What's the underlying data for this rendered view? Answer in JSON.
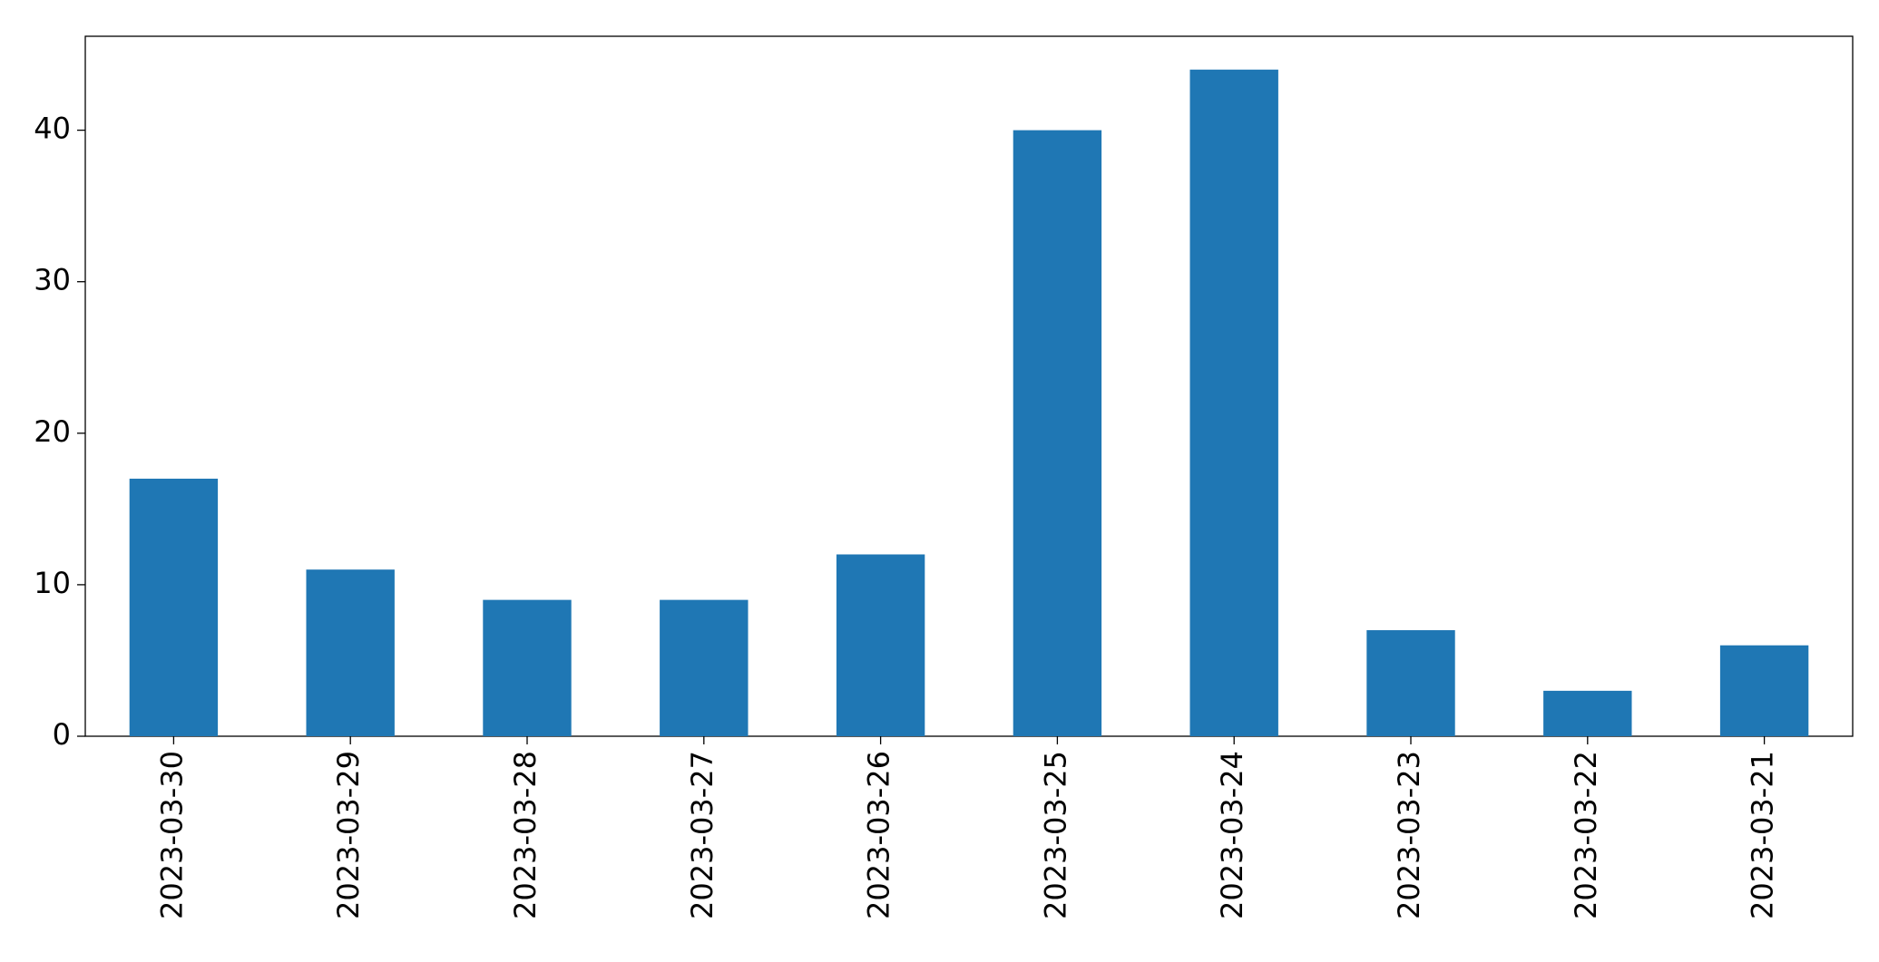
{
  "chart_data": {
    "type": "bar",
    "categories": [
      "2023-03-30",
      "2023-03-29",
      "2023-03-28",
      "2023-03-27",
      "2023-03-26",
      "2023-03-25",
      "2023-03-24",
      "2023-03-23",
      "2023-03-22",
      "2023-03-21"
    ],
    "values": [
      17,
      11,
      9,
      9,
      12,
      40,
      44,
      7,
      3,
      6
    ],
    "color": "#1f77b4",
    "ylim": [
      0,
      46.2
    ],
    "yticks": [
      0,
      10,
      20,
      30,
      40
    ],
    "grid": false
  }
}
